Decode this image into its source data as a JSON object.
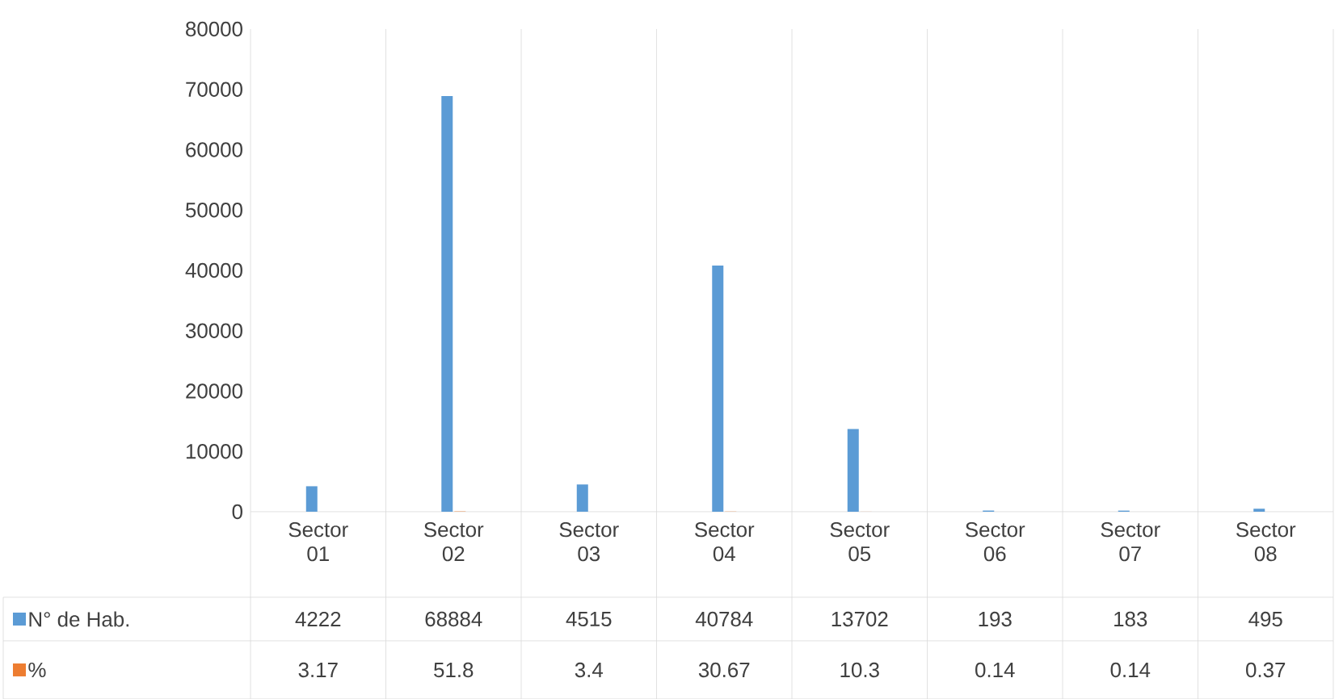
{
  "chart_data": {
    "type": "bar",
    "categories": [
      "Sector 01",
      "Sector 02",
      "Sector 03",
      "Sector 04",
      "Sector 05",
      "Sector 06",
      "Sector 07",
      "Sector 08"
    ],
    "series": [
      {
        "name": "N° de Hab.",
        "color": "#5b9bd5",
        "values": [
          4222,
          68884,
          4515,
          40784,
          13702,
          193,
          183,
          495
        ]
      },
      {
        "name": "%",
        "color": "#ed7d31",
        "values": [
          3.17,
          51.8,
          3.4,
          30.67,
          10.3,
          0.14,
          0.14,
          0.37
        ]
      }
    ],
    "ylim": [
      0,
      80000
    ],
    "yticks": [
      0,
      10000,
      20000,
      30000,
      40000,
      50000,
      60000,
      70000,
      80000
    ],
    "grid": "x",
    "legend": "bottom",
    "data_labels": true
  }
}
